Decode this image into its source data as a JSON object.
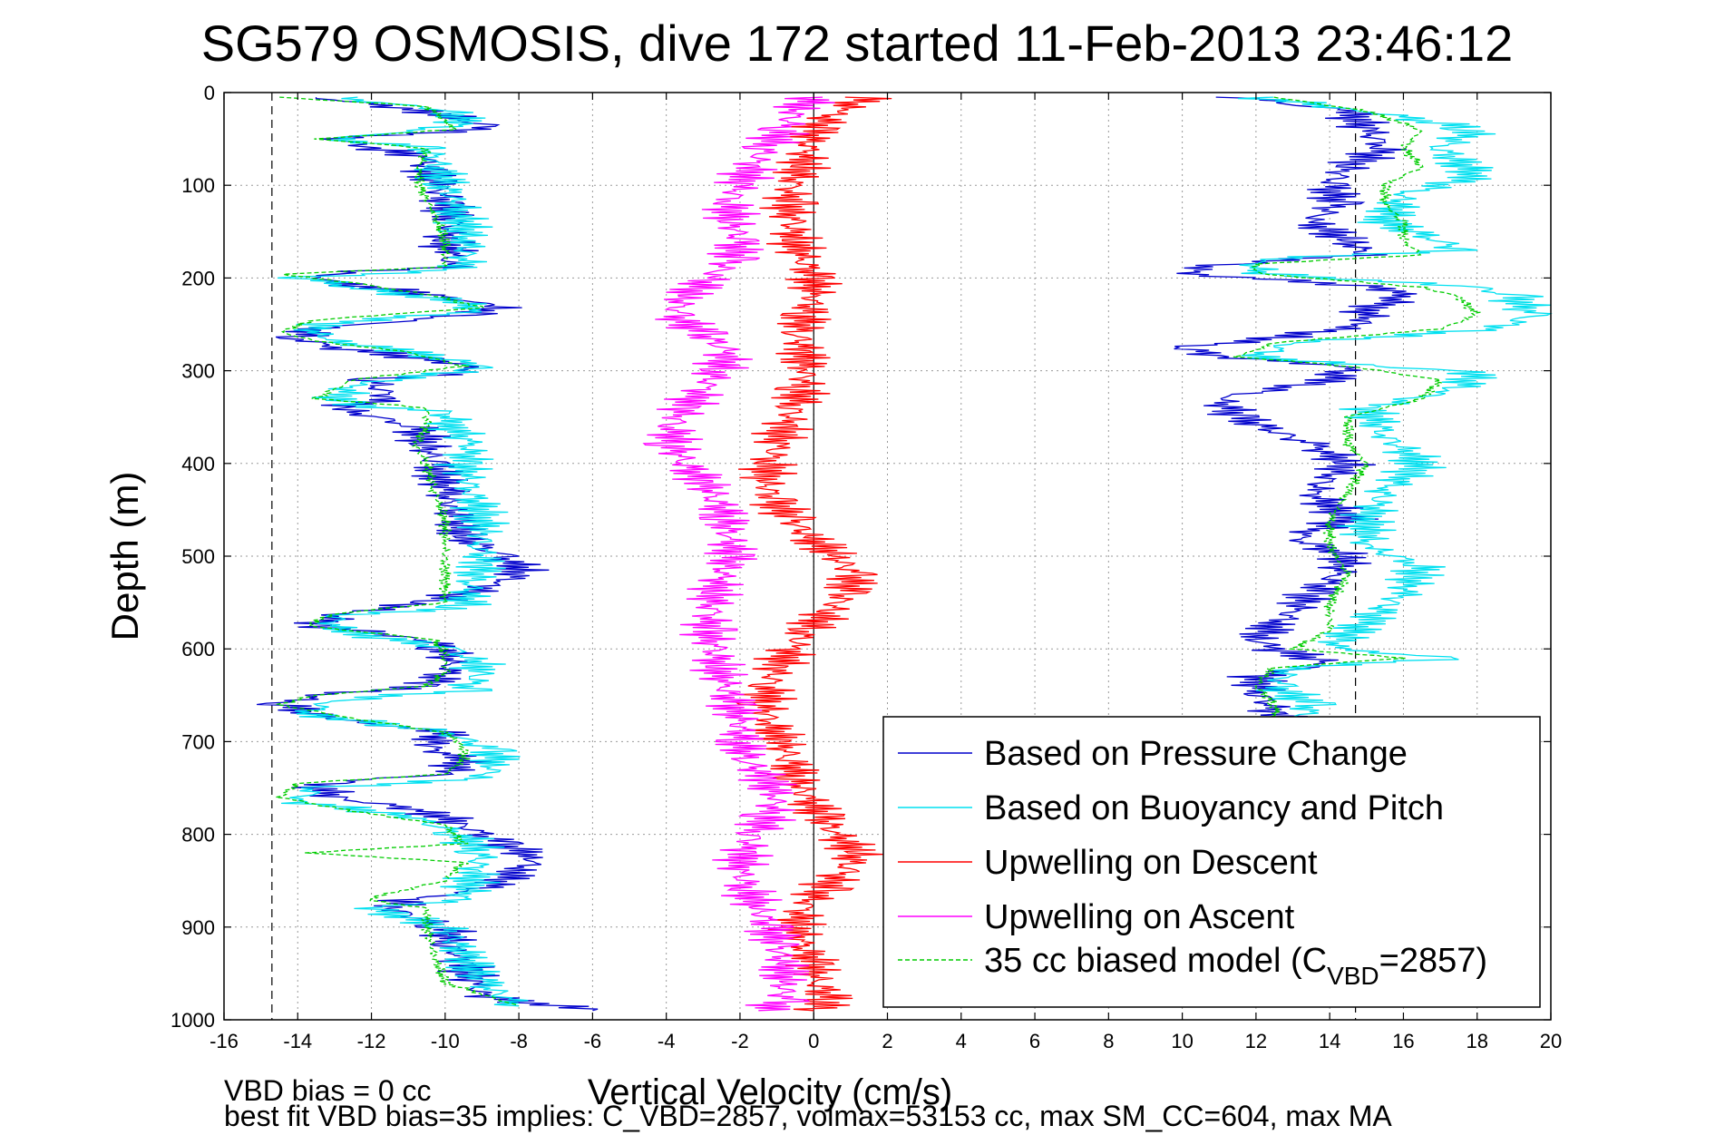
{
  "chart_data": {
    "type": "line",
    "title": "SG579 OSMOSIS, dive 172 started 11-Feb-2013 23:46:12",
    "xlabel": "Vertical Velocity (cm/s)",
    "ylabel": "Depth (m)",
    "xlim": [
      -16,
      20
    ],
    "ylim": [
      0,
      1000
    ],
    "y_reversed": true,
    "x_ticks": [
      -16,
      -14,
      -12,
      -10,
      -8,
      -6,
      -4,
      -2,
      0,
      2,
      4,
      6,
      8,
      10,
      12,
      14,
      16,
      18,
      20
    ],
    "y_ticks": [
      0,
      100,
      200,
      300,
      400,
      500,
      600,
      700,
      800,
      900,
      1000
    ],
    "grid": true,
    "legend_position": "bottom-right",
    "reference_lines": [
      -14.7,
      0,
      14.7
    ],
    "series": [
      {
        "name": "Based on Pressure Change",
        "color": "#0000cc",
        "style": "solid",
        "segments": [
          {
            "depth": [
              5,
              20,
              30,
              38,
              50,
              60,
              70,
              85,
              100,
              120,
              140,
              160,
              175,
              188,
              196,
              205,
              220,
              232,
              240,
              255,
              265,
              275,
              290,
              300,
              310,
              330,
              340,
              360,
              380,
              400,
              430,
              460,
              480,
              500,
              515,
              530,
              550,
              562,
              575,
              590,
              600,
              620,
              640,
              650,
              660,
              675,
              690,
              705,
              720,
              735,
              745,
              760,
              775,
              790,
              810,
              825,
              840,
              860,
              870,
              880,
              900,
              920,
              940,
              960,
              975,
              990
            ],
            "vel": [
              -13.5,
              -10.5,
              -9.5,
              -8.5,
              -13.0,
              -12.0,
              -10.5,
              -10.5,
              -10.2,
              -10.0,
              -9.8,
              -10.0,
              -9.8,
              -10.0,
              -13.5,
              -13.0,
              -10.0,
              -8.5,
              -9.5,
              -13.5,
              -14.0,
              -13.0,
              -10.0,
              -9.0,
              -12.0,
              -11.5,
              -13.0,
              -10.8,
              -10.5,
              -10.3,
              -10.0,
              -9.7,
              -9.5,
              -8.5,
              -7.9,
              -8.5,
              -10.5,
              -12.8,
              -13.5,
              -10.5,
              -10.0,
              -9.8,
              -10.5,
              -13.5,
              -14.4,
              -13.2,
              -10.0,
              -10.5,
              -9.5,
              -10.0,
              -13.5,
              -13.0,
              -10.5,
              -9.5,
              -8.5,
              -7.5,
              -8.0,
              -9.0,
              -11.0,
              -11.5,
              -10.0,
              -9.8,
              -9.5,
              -9.2,
              -9.0,
              -6.0
            ]
          },
          {
            "depth": [
              5,
              20,
              40,
              60,
              80,
              100,
              120,
              140,
              160,
              175,
              185,
              195,
              210,
              220,
              235,
              250,
              265,
              275,
              285,
              295,
              310,
              330,
              350,
              380,
              400,
              430,
              460,
              480,
              500,
              520,
              540,
              560,
              575,
              590,
              600,
              615,
              630,
              650,
              670,
              680
            ],
            "vel": [
              11.5,
              14.5,
              15.0,
              15.5,
              14.5,
              14.0,
              14.2,
              13.5,
              14.5,
              15.0,
              11.0,
              10.0,
              15.5,
              16.0,
              15.0,
              15.0,
              12.5,
              10.0,
              11.0,
              14.5,
              14.0,
              11.0,
              11.5,
              13.5,
              14.5,
              13.5,
              14.5,
              13.0,
              14.5,
              14.2,
              13.5,
              13.0,
              12.5,
              12.0,
              12.5,
              14.0,
              12.0,
              12.2,
              12.5,
              12.8
            ]
          }
        ]
      },
      {
        "name": "Based on Buoyancy and Pitch",
        "color": "#00e0f0",
        "style": "solid",
        "segments": [
          {
            "depth": [
              5,
              20,
              35,
              50,
              60,
              80,
              100,
              130,
              160,
              190,
              200,
              210,
              225,
              235,
              250,
              265,
              280,
              295,
              300,
              315,
              335,
              345,
              360,
              380,
              400,
              430,
              460,
              490,
              510,
              530,
              555,
              565,
              580,
              600,
              615,
              625,
              645,
              655,
              670,
              690,
              710,
              725,
              740,
              750,
              765,
              780,
              800,
              820,
              840,
              870,
              880,
              900,
              930,
              960,
              985
            ],
            "vel": [
              -13.0,
              -9.8,
              -9.5,
              -13.0,
              -10.5,
              -10.2,
              -10.0,
              -9.6,
              -9.4,
              -9.5,
              -13.8,
              -12.5,
              -9.8,
              -9.0,
              -13.5,
              -13.5,
              -11.0,
              -9.0,
              -9.5,
              -12.5,
              -13.0,
              -10.0,
              -9.8,
              -9.3,
              -9.5,
              -9.3,
              -9.0,
              -9.0,
              -9.0,
              -9.3,
              -9.5,
              -13.0,
              -13.0,
              -9.8,
              -9.2,
              -9.0,
              -9.5,
              -13.0,
              -13.8,
              -10.0,
              -8.7,
              -8.6,
              -9.0,
              -13.5,
              -14.0,
              -11.0,
              -9.6,
              -9.0,
              -9.2,
              -9.5,
              -12.0,
              -10.0,
              -9.5,
              -9.0,
              -8.0
            ]
          },
          {
            "depth": [
              5,
              20,
              40,
              60,
              90,
              110,
              140,
              160,
              170,
              180,
              195,
              210,
              220,
              240,
              255,
              270,
              285,
              295,
              300,
              320,
              340,
              370,
              400,
              430,
              460,
              490,
              510,
              540,
              570,
              600,
              610,
              620,
              640,
              660,
              680
            ],
            "vel": [
              12.0,
              15.0,
              18.0,
              17.0,
              18.0,
              16.0,
              15.5,
              17.0,
              17.5,
              12.0,
              12.0,
              18.0,
              19.0,
              19.5,
              18.5,
              13.0,
              12.0,
              15.0,
              18.0,
              17.5,
              15.0,
              15.5,
              16.5,
              15.5,
              15.0,
              15.0,
              16.5,
              16.0,
              15.0,
              14.0,
              17.5,
              13.0,
              12.5,
              13.5,
              13.2
            ]
          }
        ]
      },
      {
        "name": "Upwelling on Descent",
        "color": "#ff0000",
        "style": "solid",
        "segments": [
          {
            "depth": [
              5,
              20,
              40,
              60,
              80,
              100,
              120,
              140,
              160,
              180,
              200,
              220,
              240,
              260,
              280,
              300,
              320,
              340,
              360,
              380,
              400,
              420,
              440,
              460,
              480,
              500,
              520,
              540,
              560,
              580,
              600,
              620,
              640,
              660,
              680,
              700,
              720,
              740,
              760,
              780,
              800,
              820,
              840,
              860,
              880,
              900,
              920,
              940,
              960,
              980,
              990
            ],
            "vel": [
              1.5,
              0.6,
              0.0,
              -0.2,
              -0.3,
              -0.6,
              -0.7,
              -0.6,
              -0.5,
              -0.3,
              0.0,
              0.0,
              -0.2,
              -0.4,
              -0.3,
              -0.2,
              -0.3,
              -0.5,
              -0.8,
              -1.0,
              -1.2,
              -1.3,
              -1.1,
              -0.6,
              -0.1,
              0.6,
              1.1,
              0.9,
              0.4,
              -0.2,
              -0.6,
              -1.0,
              -1.2,
              -1.3,
              -1.2,
              -0.9,
              -0.6,
              -0.5,
              -0.2,
              0.2,
              0.6,
              1.2,
              0.8,
              0.2,
              -0.3,
              -0.5,
              -0.3,
              0.0,
              0.1,
              0.5,
              0.0
            ]
          }
        ]
      },
      {
        "name": "Upwelling on Ascent",
        "color": "#ff00ff",
        "style": "solid",
        "segments": [
          {
            "depth": [
              5,
              20,
              40,
              60,
              80,
              100,
              120,
              140,
              160,
              180,
              200,
              220,
              240,
              260,
              280,
              300,
              320,
              340,
              360,
              380,
              400,
              420,
              440,
              460,
              480,
              500,
              520,
              540,
              560,
              580,
              600,
              620,
              640,
              660,
              680,
              700,
              720,
              740,
              760,
              780,
              800,
              820,
              840,
              860,
              880,
              900,
              920,
              940,
              960,
              980,
              990
            ],
            "vel": [
              0.0,
              -0.5,
              -0.8,
              -1.3,
              -1.7,
              -2.0,
              -2.3,
              -2.2,
              -2.0,
              -2.2,
              -2.8,
              -3.5,
              -3.8,
              -3.0,
              -2.3,
              -2.6,
              -3.0,
              -3.5,
              -3.8,
              -3.8,
              -3.5,
              -3.0,
              -2.6,
              -2.4,
              -2.3,
              -2.2,
              -2.5,
              -2.7,
              -2.8,
              -2.9,
              -2.7,
              -2.6,
              -2.4,
              -2.2,
              -2.0,
              -2.0,
              -1.8,
              -1.3,
              -1.0,
              -1.2,
              -1.6,
              -1.9,
              -2.0,
              -1.8,
              -1.5,
              -1.2,
              -1.0,
              -0.8,
              -0.8,
              -0.8,
              -1.5
            ]
          }
        ]
      },
      {
        "name": "35 cc biased model (C_VBD=2857)",
        "color": "#00cc00",
        "style": "dashed",
        "segments": [
          {
            "depth": [
              5,
              15,
              30,
              40,
              50,
              60,
              80,
              100,
              130,
              160,
              188,
              196,
              205,
              220,
              232,
              245,
              258,
              268,
              280,
              295,
              310,
              330,
              340,
              360,
              380,
              400,
              430,
              460,
              490,
              520,
              550,
              562,
              575,
              590,
              605,
              625,
              640,
              650,
              660,
              675,
              690,
              705,
              720,
              735,
              745,
              760,
              775,
              790,
              810,
              820,
              830,
              850,
              870,
              880,
              900,
              930,
              960,
              985
            ],
            "vel": [
              -14.5,
              -10.5,
              -10.0,
              -9.8,
              -13.5,
              -10.5,
              -10.7,
              -10.7,
              -10.3,
              -10.0,
              -10.0,
              -14.5,
              -12.5,
              -10.2,
              -9.0,
              -13.5,
              -14.5,
              -13.5,
              -11.0,
              -9.5,
              -12.5,
              -13.5,
              -10.5,
              -10.5,
              -10.8,
              -10.5,
              -10.3,
              -10.0,
              -10.0,
              -10.0,
              -10.0,
              -13.0,
              -13.8,
              -10.3,
              -10.0,
              -10.0,
              -10.5,
              -13.5,
              -14.5,
              -12.5,
              -10.0,
              -9.5,
              -9.5,
              -10.0,
              -14.0,
              -14.5,
              -12.5,
              -10.0,
              -9.5,
              -13.8,
              -9.5,
              -10.0,
              -12.2,
              -10.5,
              -10.5,
              -10.3,
              -10.0,
              -8.0
            ]
          },
          {
            "depth": [
              5,
              20,
              40,
              60,
              80,
              100,
              120,
              140,
              160,
              175,
              185,
              195,
              210,
              220,
              240,
              255,
              270,
              285,
              295,
              310,
              330,
              350,
              380,
              400,
              430,
              460,
              490,
              520,
              550,
              580,
              600,
              610,
              620,
              640,
              660,
              680
            ],
            "vel": [
              12.5,
              15.0,
              16.5,
              16.0,
              16.5,
              15.5,
              15.5,
              16.0,
              16.0,
              16.5,
              12.0,
              12.0,
              16.5,
              17.5,
              18.0,
              17.0,
              12.5,
              11.5,
              14.5,
              17.0,
              16.5,
              14.5,
              14.5,
              15.0,
              14.5,
              14.0,
              14.0,
              14.5,
              14.0,
              14.0,
              13.0,
              16.0,
              12.5,
              12.0,
              12.5,
              12.6
            ]
          }
        ]
      }
    ]
  },
  "legend": {
    "items": [
      {
        "label": "Based on Pressure Change",
        "color": "#0000cc",
        "dashed": false
      },
      {
        "label": "Based on Buoyancy and Pitch",
        "color": "#00e0f0",
        "dashed": false
      },
      {
        "label": "Upwelling on Descent",
        "color": "#ff0000",
        "dashed": false
      },
      {
        "label": "Upwelling on Ascent",
        "color": "#ff00ff",
        "dashed": false
      },
      {
        "label_main": "35 cc biased model (C",
        "label_sub": "VBD",
        "label_tail": "=2857)",
        "color": "#00cc00",
        "dashed": true
      }
    ]
  },
  "footer": {
    "line1": "VBD bias = 0 cc",
    "line2": "best fit VBD bias=35 implies: C_VBD=2857, volmax=53153 cc, max SM_CC=604, max MA"
  }
}
